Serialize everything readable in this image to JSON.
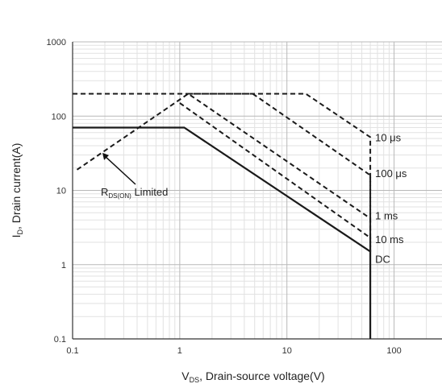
{
  "chart_data": {
    "type": "line",
    "title": "",
    "xlabel": "V",
    "xlabel_sub": "DS",
    "xlabel_rest": ", Drain-source voltage(V)",
    "ylabel": "I",
    "ylabel_sub": "D",
    "ylabel_rest": ", Drain current(A)",
    "xscale": "log",
    "yscale": "log",
    "xlim": [
      0.1,
      280
    ],
    "ylim": [
      0.1,
      1000
    ],
    "x_ticks": [
      0.1,
      1,
      10,
      100
    ],
    "x_tick_labels": [
      "0.1",
      "1",
      "10",
      "100"
    ],
    "y_ticks": [
      0.1,
      1,
      10,
      100,
      1000
    ],
    "y_tick_labels": [
      "0.1",
      "1",
      "10",
      "100",
      "1000"
    ],
    "grid": "log major and minor",
    "annotations": {
      "rdson_main": "R",
      "rdson_sub": "DS(ON)",
      "rdson_rest": " Limited",
      "rdson_arrow_tip": [
        0.19,
        32
      ]
    },
    "series": [
      {
        "name": "10 μs",
        "style": "dashed",
        "points": [
          [
            0.1,
            200
          ],
          [
            15,
            200
          ],
          [
            60,
            52
          ],
          [
            60,
            1.5
          ]
        ]
      },
      {
        "name": "100 μs",
        "style": "dashed",
        "points": [
          [
            1.2,
            200
          ],
          [
            4.8,
            200
          ],
          [
            60,
            16
          ],
          [
            60,
            1.5
          ]
        ]
      },
      {
        "name": "1 ms",
        "style": "dashed",
        "points": [
          [
            0.11,
            19
          ],
          [
            1.2,
            200
          ],
          [
            60,
            4.2
          ],
          [
            60,
            1.5
          ]
        ]
      },
      {
        "name": "10 ms",
        "style": "dashed",
        "points": [
          [
            1.0,
            150
          ],
          [
            60,
            2.3
          ],
          [
            60,
            1.5
          ]
        ]
      },
      {
        "name": "DC",
        "style": "solid",
        "points": [
          [
            0.1,
            70
          ],
          [
            1.1,
            70
          ],
          [
            60,
            1.5
          ],
          [
            60,
            0.1
          ]
        ]
      }
    ],
    "series_label_values": [
      52,
      17,
      4.6,
      2.2,
      1.2
    ]
  }
}
